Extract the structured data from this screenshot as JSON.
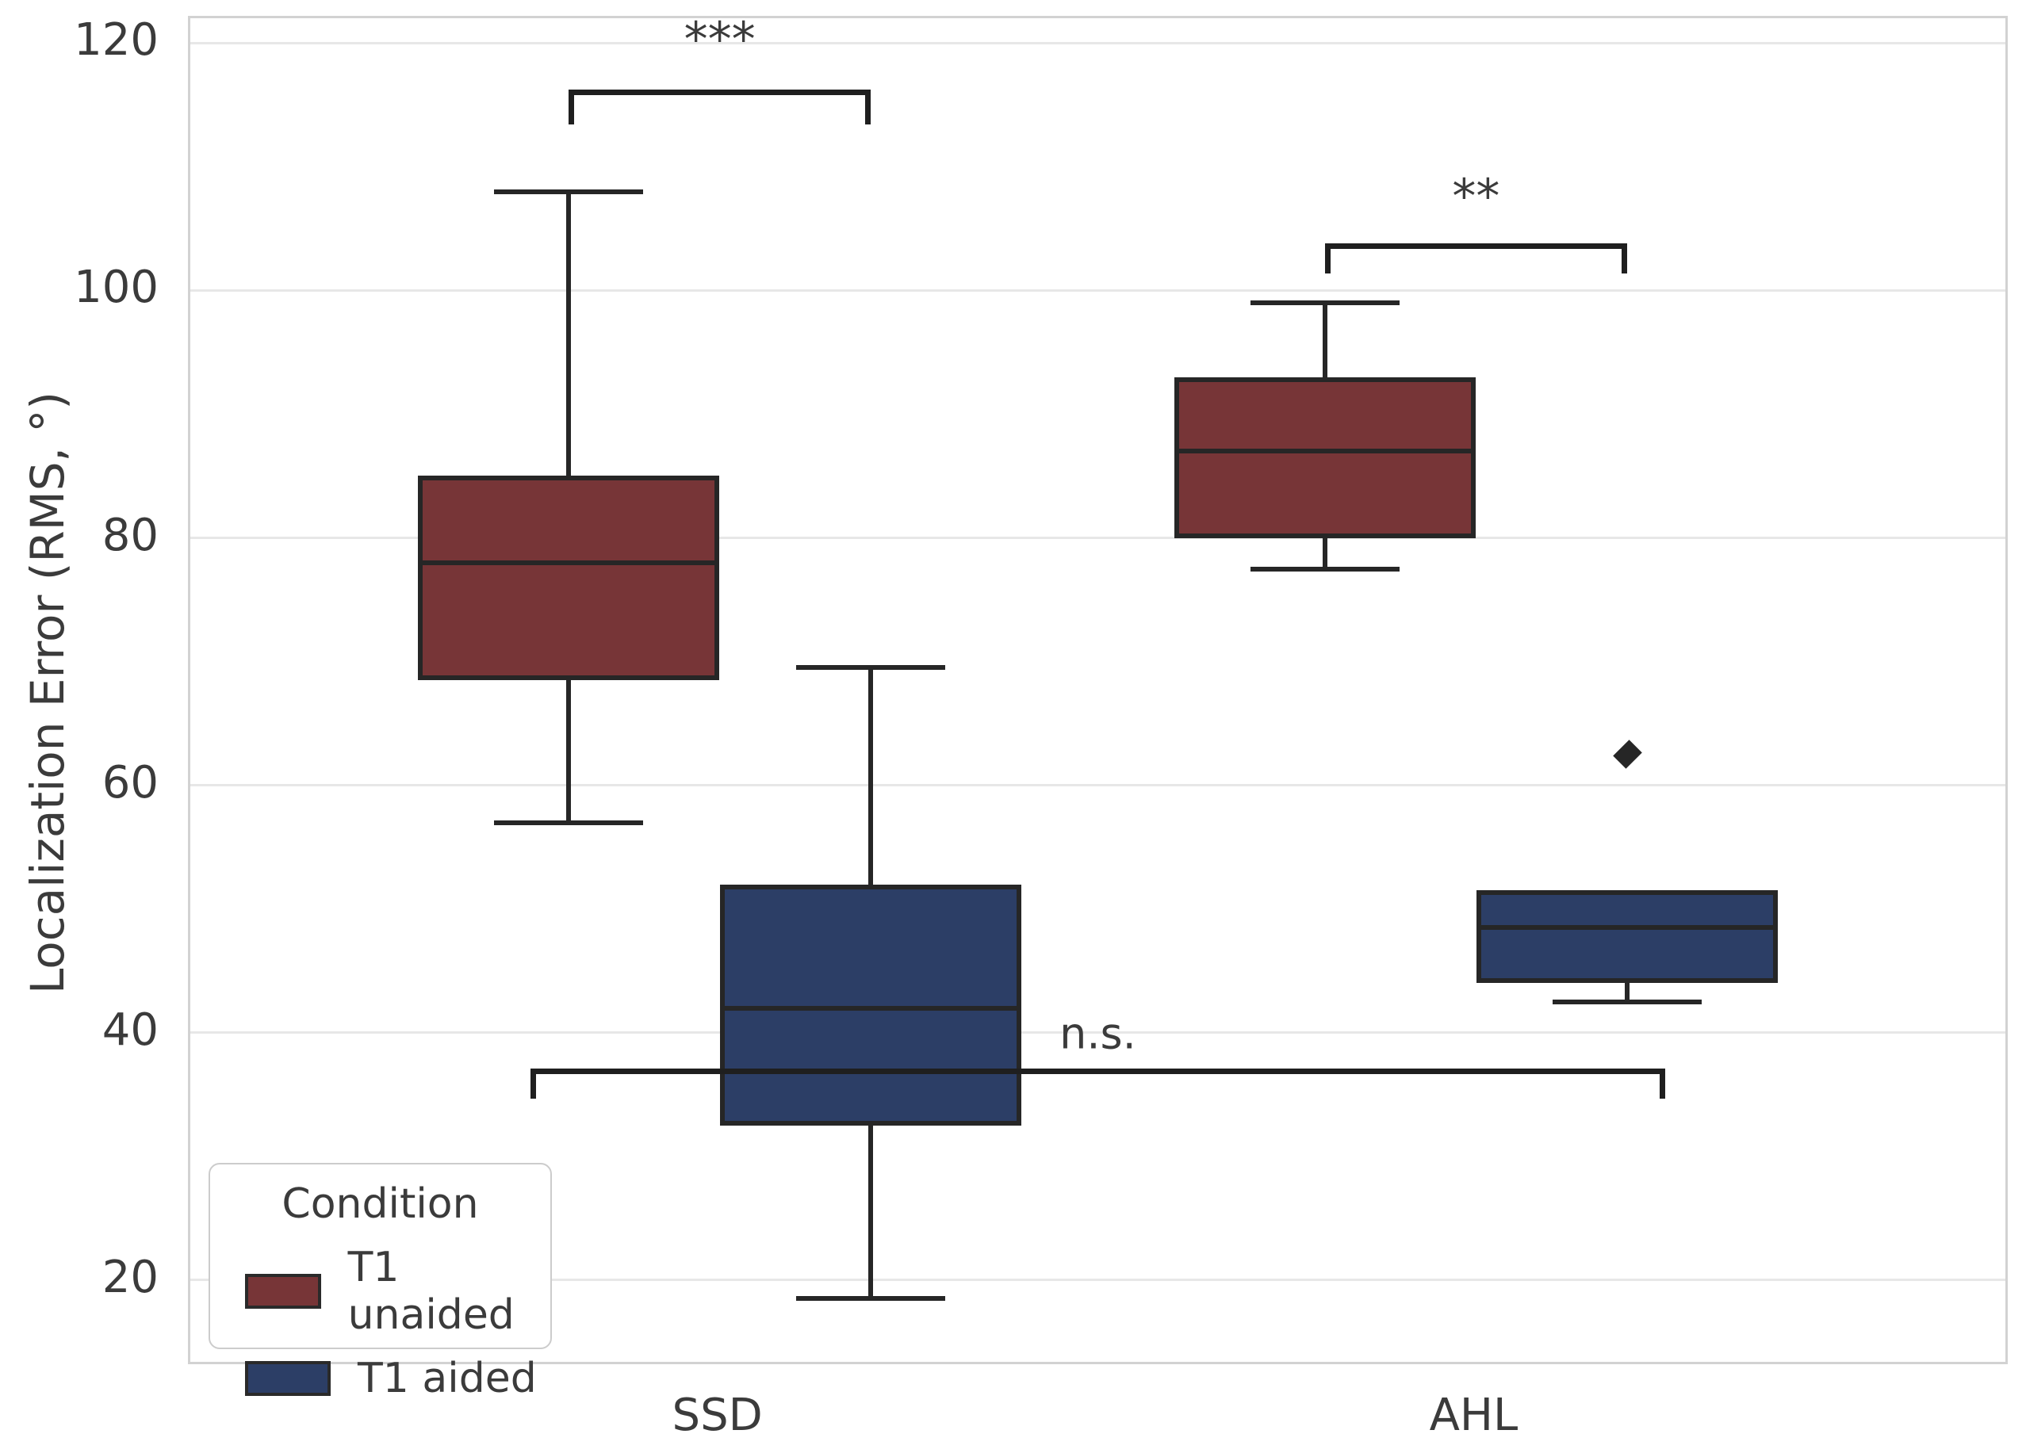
{
  "figure": {
    "background": "#ffffff",
    "plot_border_color": "#d2d2d2",
    "grid_color": "#e7e7e7",
    "line_color": "#262626",
    "text_color": "#3b3b3b"
  },
  "chart_data": {
    "type": "boxplot",
    "title": "",
    "xlabel": "",
    "ylabel": "Localization Error (RMS, °)",
    "categories": [
      "SSD",
      "AHL"
    ],
    "category_positions": [
      0,
      1
    ],
    "yticks": [
      20,
      40,
      60,
      80,
      100,
      120
    ],
    "ylim": [
      13.4,
      122
    ],
    "xlim": [
      -0.7,
      1.7
    ],
    "grid": "horizontal",
    "legend": {
      "title": "Condition",
      "position": "lower-left"
    },
    "series": [
      {
        "name": "T1 unaided",
        "color": "#773537",
        "boxes": [
          {
            "category": "SSD",
            "x": -0.2,
            "whisker_low": 57,
            "q1": 68.5,
            "median": 78,
            "q3": 85,
            "whisker_high": 108,
            "outliers": []
          },
          {
            "category": "AHL",
            "x": 0.8,
            "whisker_low": 77.5,
            "q1": 80,
            "median": 87,
            "q3": 93,
            "whisker_high": 99,
            "outliers": []
          }
        ]
      },
      {
        "name": "T1 aided",
        "color": "#2C3E66",
        "boxes": [
          {
            "category": "SSD",
            "x": 0.2,
            "whisker_low": 18.5,
            "q1": 32.5,
            "median": 42,
            "q3": 52,
            "whisker_high": 69.5,
            "outliers": []
          },
          {
            "category": "AHL",
            "x": 1.2,
            "whisker_low": 42.5,
            "q1": 44,
            "median": 48.5,
            "q3": 51.5,
            "whisker_high": 51.5,
            "outliers": [
              62.5
            ]
          }
        ]
      }
    ],
    "annotations": [
      {
        "label": "***",
        "compares": "SSD: T1 unaided vs T1 aided",
        "x_from": -0.2,
        "x_to": 0.2,
        "y": 116.0,
        "tick_drop": 2.6,
        "label_y": 120.3
      },
      {
        "label": "**",
        "compares": "AHL: T1 unaided vs T1 aided",
        "x_from": 0.8,
        "x_to": 1.2,
        "y": 103.6,
        "tick_drop": 2.2,
        "label_y": 107.6
      },
      {
        "label": "n.s.",
        "compares": "SSD vs AHL",
        "x_from": -0.25,
        "x_to": 1.25,
        "y": 36.9,
        "tick_drop": 2.2,
        "label_y": 39.9
      }
    ]
  }
}
